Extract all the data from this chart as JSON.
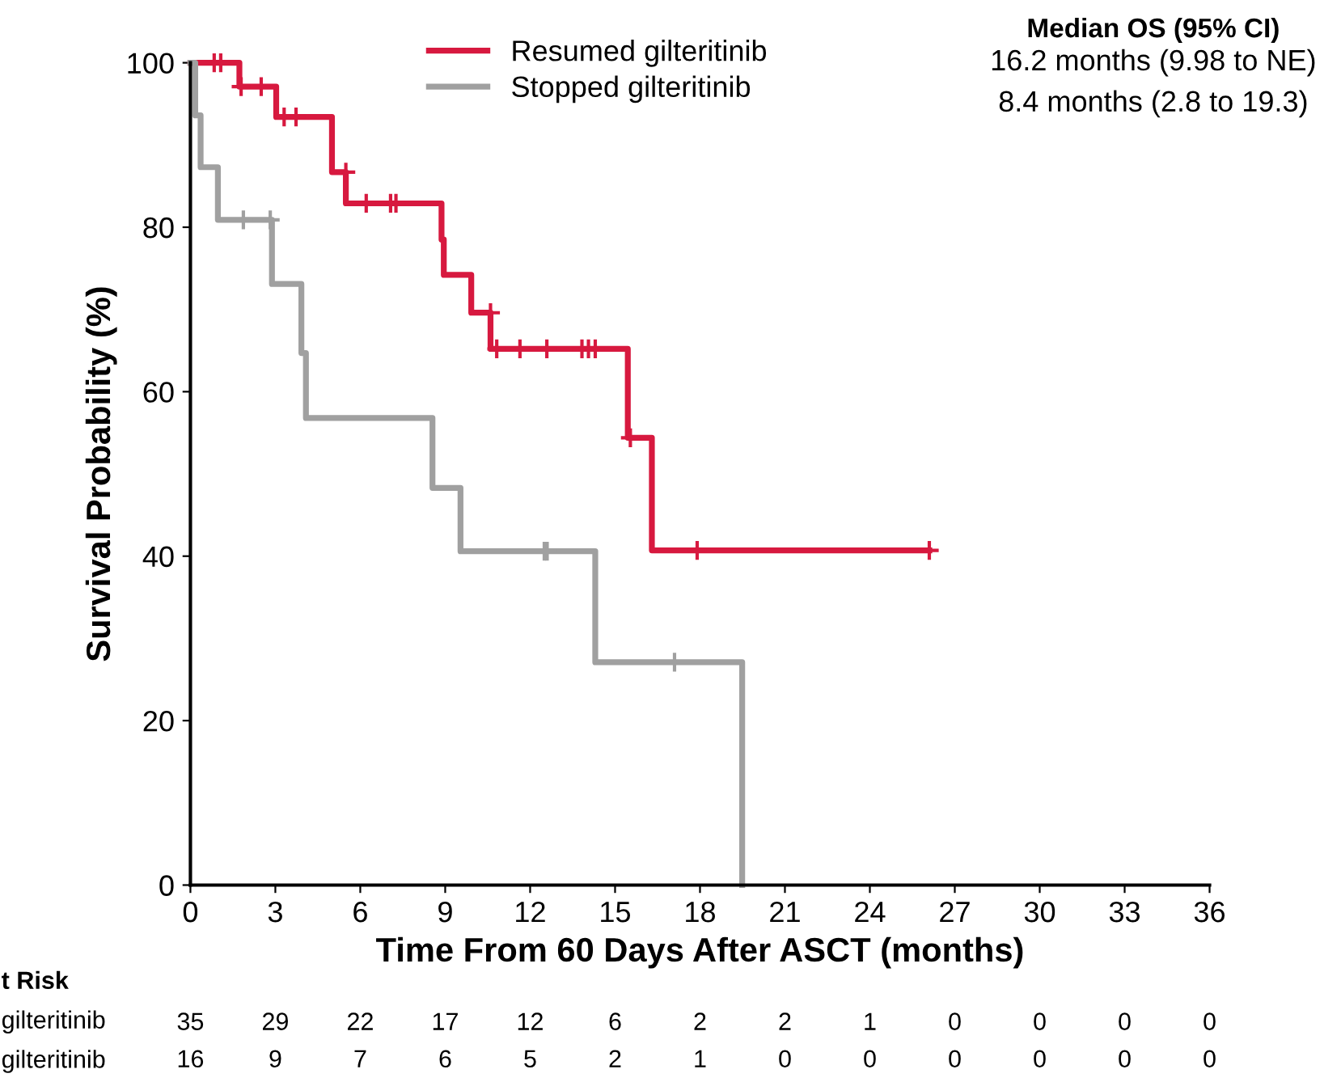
{
  "chart_data": {
    "type": "step",
    "xlabel": "Time From 60 Days After ASCT (months)",
    "ylabel": "Survival Probability (%)",
    "xlim": [
      0,
      36
    ],
    "xticks": [
      0,
      3,
      6,
      9,
      12,
      15,
      18,
      21,
      24,
      27,
      30,
      33,
      36
    ],
    "ylim": [
      0,
      100
    ],
    "yticks": [
      0,
      20,
      40,
      60,
      80,
      100
    ],
    "grid": false,
    "legend": "top",
    "series": [
      {
        "name": "Resumed gilteritinib",
        "color": "#d7193f",
        "marker": "none",
        "x": [
          0,
          1.73,
          3.03,
          5.0,
          5.49,
          8.87,
          8.95,
          9.92,
          10.6,
          15.45,
          16.3,
          26.1
        ],
        "values": [
          100,
          97.1,
          93.4,
          86.7,
          82.9,
          78.5,
          74.2,
          69.6,
          65.2,
          54.4,
          40.7,
          40.7
        ]
      },
      {
        "name": "Stopped gilteritinib",
        "color": "#a0a0a0",
        "marker": "none",
        "x": [
          0,
          0.17,
          0.36,
          0.97,
          2.88,
          3.92,
          4.08,
          8.55,
          9.54,
          14.3,
          19.49
        ],
        "values": [
          100,
          93.6,
          87.3,
          80.9,
          73.1,
          64.7,
          56.8,
          48.3,
          40.6,
          27.1,
          0
        ]
      },
      {
        "type": "scatter",
        "color": "#d7193f",
        "marker": "cross",
        "x": [
          0.84,
          1.07,
          1.79,
          2.5,
          3.31,
          3.73,
          5.49,
          6.21,
          7.07,
          7.26,
          10.6,
          10.82,
          11.64,
          12.59,
          13.83,
          14.06,
          14.3,
          15.54,
          17.9,
          26.1
        ],
        "values": [
          100,
          100,
          97.1,
          97.1,
          93.4,
          93.4,
          86.7,
          82.9,
          82.9,
          82.9,
          69.6,
          65.2,
          65.2,
          65.2,
          65.2,
          65.2,
          65.2,
          54.4,
          40.7,
          40.7
        ]
      },
      {
        "type": "scatter",
        "color": "#a0a0a0",
        "marker": "cross",
        "x": [
          1.87,
          2.82,
          12.5,
          12.6,
          17.1
        ],
        "values": [
          80.9,
          80.9,
          40.6,
          40.6,
          27.1
        ]
      }
    ],
    "annotations": [
      "Median OS (95% CI)",
      "16.2 months (9.98 to NE)",
      "8.4 months (2.8 to 19.3)",
      "t Risk",
      "gilteritinib",
      "gilteritinib",
      "35",
      "29",
      "22",
      "17",
      "12",
      "6",
      "2",
      "2",
      "1",
      "0",
      "0",
      "0",
      "0",
      "16",
      "9",
      "7",
      "6",
      "5",
      "2",
      "1",
      "0",
      "0",
      "0",
      "0",
      "0",
      "0"
    ]
  }
}
